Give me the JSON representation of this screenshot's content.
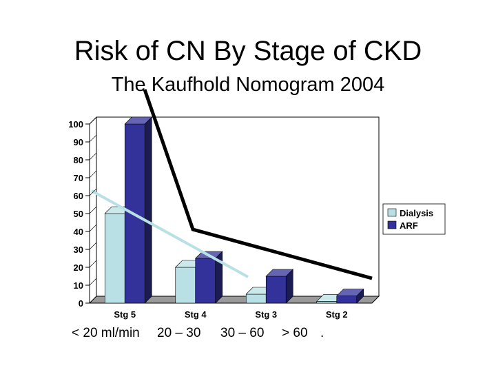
{
  "slide": {
    "title": "Risk of CN By Stage of CKD",
    "subtitle": "The Kaufhold Nomogram 2004"
  },
  "gfr_labels": [
    "< 20 ml/min",
    "20 – 30",
    "30 – 60",
    "> 60",
    "."
  ],
  "chart_data": {
    "type": "bar",
    "categories": [
      "Stg 5",
      "Stg 4",
      "Stg 3",
      "Stg 2"
    ],
    "series": [
      {
        "name": "Dialysis",
        "values": [
          50,
          20,
          5,
          1
        ],
        "color": "#b9e0e4"
      },
      {
        "name": "ARF",
        "values": [
          100,
          25,
          15,
          4
        ],
        "color": "#32329a"
      }
    ],
    "ylim": [
      0,
      100
    ],
    "yticks": [
      "0",
      "10",
      "20",
      "30",
      "40",
      "50",
      "60",
      "70",
      "80",
      "90",
      "100"
    ],
    "legend": "right",
    "grid": false,
    "three_d": true,
    "colors": {
      "axis": "#000000",
      "floor": "#9a9a9a",
      "overlay_dark": "#000000",
      "overlay_light": "#b9e0e4"
    }
  }
}
